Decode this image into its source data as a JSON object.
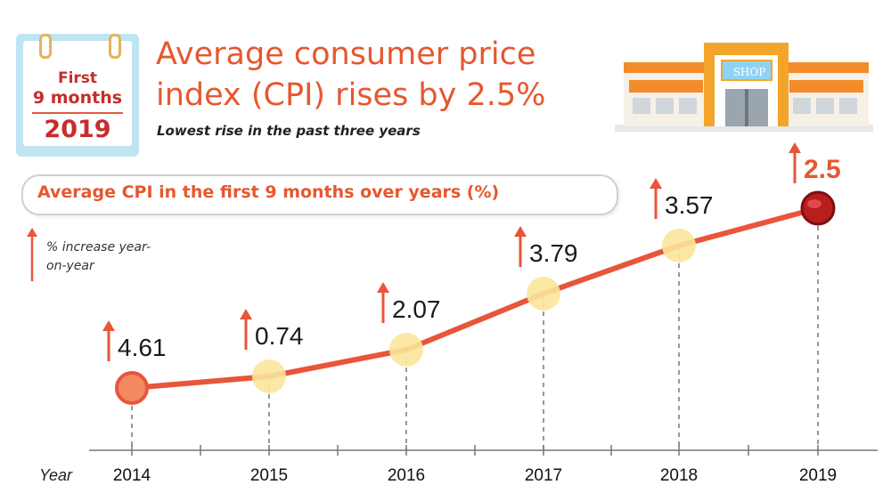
{
  "badge": {
    "line1": "First",
    "line2": "9 months",
    "year": "2019"
  },
  "header": {
    "title": "Average consumer price index (CPI) rises by 2.5%",
    "subtitle": "Lowest rise in the past three years"
  },
  "shop_sign": "SHOP",
  "legend": {
    "text": "% increase year-on-year",
    "icon": "up-arrow-icon"
  },
  "colors": {
    "accent": "#e5582f",
    "line": "#e8553a",
    "marker": "#fbe69a",
    "last_marker": "#b81e1e",
    "arrow": "#e8553a"
  },
  "chart_data": {
    "type": "line",
    "title": "Average CPI in the first 9 months over years (%)",
    "xlabel": "Year",
    "categories": [
      "2014",
      "2015",
      "2016",
      "2017",
      "2018",
      "2019"
    ],
    "values": [
      4.61,
      0.74,
      2.07,
      3.79,
      3.57,
      2.5
    ],
    "value_labels": [
      "4.61",
      "0.74",
      "2.07",
      "3.79",
      "3.57",
      "2.5"
    ],
    "grid": false
  }
}
